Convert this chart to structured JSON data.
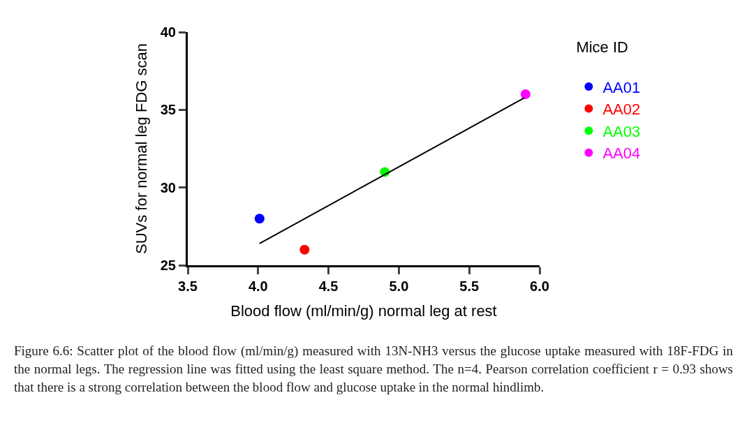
{
  "chart_data": {
    "type": "scatter",
    "xlabel": "Blood flow (ml/min/g) normal leg at rest",
    "ylabel": "SUVs for normal leg FDG scan",
    "legend_title": "Mice ID",
    "legend": "right",
    "marker": "circle",
    "grid": false,
    "xlim": [
      3.5,
      6.0
    ],
    "xticks": [
      {
        "value": 3.5,
        "label": "3.5"
      },
      {
        "value": 4.0,
        "label": "4.0"
      },
      {
        "value": 4.5,
        "label": "4.5"
      },
      {
        "value": 5.0,
        "label": "5.0"
      },
      {
        "value": 5.5,
        "label": "5.5"
      },
      {
        "value": 6.0,
        "label": "6.0"
      }
    ],
    "ylim": [
      25,
      40
    ],
    "yticks": [
      25,
      30,
      35,
      40
    ],
    "series": [
      {
        "name": "AA01",
        "color": "#0000ff",
        "x": [
          4.01
        ],
        "values": [
          28.0
        ]
      },
      {
        "name": "AA02",
        "color": "#ff0000",
        "x": [
          4.33
        ],
        "values": [
          26.0
        ]
      },
      {
        "name": "AA03",
        "color": "#00ff00",
        "x": [
          4.9
        ],
        "values": [
          31.0
        ]
      },
      {
        "name": "AA04",
        "color": "#ff00ff",
        "x": [
          5.9
        ],
        "values": [
          36.0
        ]
      },
      {
        "type": "line",
        "color": "#000000",
        "marker": "none",
        "x": [
          4.01,
          5.89
        ],
        "values": [
          26.4,
          35.76
        ]
      }
    ],
    "annotations": [
      "Figure 6.6: Scatter plot of the blood flow (ml/min/g) measured with 13N-NH3 versus the glucose uptake measured with 18F-FDG in the normal legs. The regression line was fitted using the least square method. The n=4. Pearson correlation coefficient r = 0.93 shows that there is a strong correlation between the blood flow and glucose uptake in the normal hindlimb."
    ]
  }
}
